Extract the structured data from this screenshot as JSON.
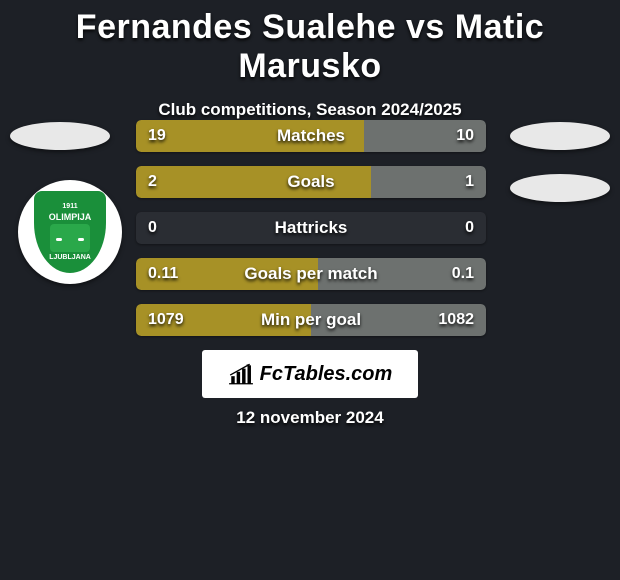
{
  "colors": {
    "bg": "#1d2026",
    "bar_left": "#a79126",
    "bar_right": "#6d716f",
    "bar_empty": "#2a2d33",
    "text": "#ffffff",
    "brand_bg": "#ffffff",
    "crest_green": "#1a8f3a"
  },
  "title": "Fernandes Sualehe vs Matic Marusko",
  "subtitle": "Club competitions, Season 2024/2025",
  "stats": [
    {
      "label": "Matches",
      "left_val": "19",
      "right_val": "10",
      "left_pct": 65,
      "right_pct": 35
    },
    {
      "label": "Goals",
      "left_val": "2",
      "right_val": "1",
      "left_pct": 67,
      "right_pct": 33
    },
    {
      "label": "Hattricks",
      "left_val": "0",
      "right_val": "0",
      "left_pct": 0,
      "right_pct": 0
    },
    {
      "label": "Goals per match",
      "left_val": "0.11",
      "right_val": "0.1",
      "left_pct": 52,
      "right_pct": 48
    },
    {
      "label": "Min per goal",
      "left_val": "1079",
      "right_val": "1082",
      "left_pct": 50,
      "right_pct": 50
    }
  ],
  "brand": "FcTables.com",
  "date": "12 november 2024",
  "crest": {
    "top_text": "1911",
    "name": "OLIMPIJA",
    "city": "LJUBLJANA"
  }
}
